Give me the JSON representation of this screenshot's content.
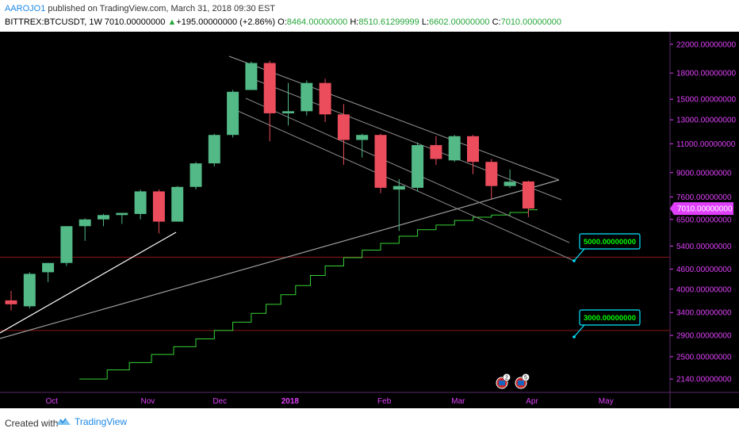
{
  "header": {
    "author": "AAROJO1",
    "published": "published on TradingView.com, March 31, 2018 09:30 EST",
    "symbol": "BITTREX:BTCUSDT, 1W",
    "last": "7010.00000000",
    "change_arrow": "▲",
    "change": "+195.00000000 (+2.86%)",
    "o_label": "O:",
    "o": "8464.00000000",
    "h_label": "H:",
    "h": "8510.61299999",
    "l_label": "L:",
    "l": "6602.00000000",
    "c_label": "C:",
    "c": "7010.00000000"
  },
  "footer": {
    "created_with": "Created with",
    "brand": "TradingView",
    "brand_icon": "tradingview-logo-icon"
  },
  "colors": {
    "background": "#000000",
    "up": "#53b987",
    "down": "#eb4d5c",
    "axis_text": "#e040fb",
    "stepline": "#35d435",
    "trendline_white": "#ffffff",
    "trendline_gray": "#9e9e9e",
    "hline": "#8b1a1a",
    "callout_border": "#00e5ff",
    "callout_text": "#00ff00",
    "price_tag_bg": "#e040fb"
  },
  "chart_data": {
    "type": "candlestick",
    "title": "",
    "xlabel": "",
    "ylabel": "",
    "y_scale": "log",
    "ylim": [
      1950,
      24000
    ],
    "x_ticks": [
      "Oct",
      "Nov",
      "Dec",
      "2018",
      "Feb",
      "Mar",
      "Apr",
      "May"
    ],
    "y_ticks": [
      "22000.00000000",
      "18000.00000000",
      "15000.00000000",
      "13000.00000000",
      "11000.00000000",
      "9000.00000000",
      "7600.00000000",
      "6500.00000000",
      "5400.00000000",
      "4600.00000000",
      "4000.00000000",
      "3400.00000000",
      "2900.00000000",
      "2500.00000000",
      "2140.00000000"
    ],
    "last_price_tag": "7010.00000000",
    "candles": [
      {
        "o": 3700,
        "h": 3950,
        "l": 3450,
        "c": 3600
      },
      {
        "o": 3550,
        "h": 4500,
        "l": 3500,
        "c": 4450
      },
      {
        "o": 4500,
        "h": 4800,
        "l": 4200,
        "c": 4800
      },
      {
        "o": 4800,
        "h": 6200,
        "l": 4700,
        "c": 6200
      },
      {
        "o": 6200,
        "h": 6550,
        "l": 5600,
        "c": 6500
      },
      {
        "o": 6500,
        "h": 6750,
        "l": 6200,
        "c": 6700
      },
      {
        "o": 6700,
        "h": 6800,
        "l": 6300,
        "c": 6800
      },
      {
        "o": 6750,
        "h": 8000,
        "l": 6500,
        "c": 7900
      },
      {
        "o": 7900,
        "h": 8000,
        "l": 5900,
        "c": 6400
      },
      {
        "o": 6400,
        "h": 8200,
        "l": 6400,
        "c": 8150
      },
      {
        "o": 8150,
        "h": 9700,
        "l": 8000,
        "c": 9600
      },
      {
        "o": 9600,
        "h": 11800,
        "l": 9400,
        "c": 11700
      },
      {
        "o": 11700,
        "h": 16000,
        "l": 11500,
        "c": 15800
      },
      {
        "o": 16000,
        "h": 19500,
        "l": 16000,
        "c": 19300
      },
      {
        "o": 19300,
        "h": 19600,
        "l": 11200,
        "c": 13600
      },
      {
        "o": 13600,
        "h": 16800,
        "l": 12500,
        "c": 13800
      },
      {
        "o": 13800,
        "h": 17100,
        "l": 13400,
        "c": 16800
      },
      {
        "o": 16800,
        "h": 17300,
        "l": 12800,
        "c": 13500
      },
      {
        "o": 13500,
        "h": 14500,
        "l": 9500,
        "c": 11300
      },
      {
        "o": 11300,
        "h": 11800,
        "l": 10000,
        "c": 11700
      },
      {
        "o": 11700,
        "h": 11800,
        "l": 7800,
        "c": 8100
      },
      {
        "o": 8000,
        "h": 8600,
        "l": 6000,
        "c": 8200
      },
      {
        "o": 8100,
        "h": 11100,
        "l": 7900,
        "c": 10900
      },
      {
        "o": 10900,
        "h": 11600,
        "l": 9500,
        "c": 9900
      },
      {
        "o": 9800,
        "h": 11700,
        "l": 9700,
        "c": 11600
      },
      {
        "o": 11600,
        "h": 11700,
        "l": 8900,
        "c": 9700
      },
      {
        "o": 9700,
        "h": 9900,
        "l": 7500,
        "c": 8200
      },
      {
        "o": 8200,
        "h": 9200,
        "l": 8100,
        "c": 8450
      },
      {
        "o": 8464,
        "h": 8510.61,
        "l": 6602,
        "c": 7010
      }
    ],
    "annotations": [
      {
        "label": "5000.00000000",
        "price": 5000
      },
      {
        "label": "3000.00000000",
        "price": 3000
      }
    ],
    "horizontal_levels": [
      5000,
      3000
    ],
    "event_markers": [
      {
        "label": "2",
        "icon": "us-flag-event-icon"
      },
      {
        "label": "5",
        "icon": "us-flag-event-icon"
      }
    ]
  }
}
